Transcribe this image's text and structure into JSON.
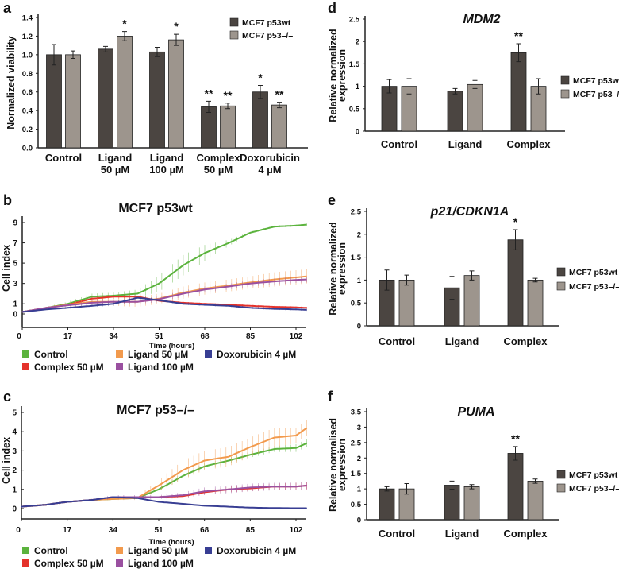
{
  "colors": {
    "wt": "#4b4541",
    "ko": "#9d958d",
    "Control": "#5bb33d",
    "Complex 50 µM": "#e4322b",
    "Ligand 50 µM": "#f29a4d",
    "Ligand 100 µM": "#9a50a0",
    "Doxorubicin 4 µM": "#383e93"
  },
  "chart_data": [
    {
      "id": "a",
      "panel_label": "a",
      "type": "bar",
      "title": "",
      "ylabel": "Normalized viability",
      "ylim": [
        0,
        1.4
      ],
      "yticks": [
        "0.0",
        "0.2",
        "0.4",
        "0.6",
        "0.8",
        "1.0",
        "1.2",
        "1.4"
      ],
      "categories": [
        [
          "Control"
        ],
        [
          "Ligand",
          "50 µM"
        ],
        [
          "Ligand",
          "100 µM"
        ],
        [
          "Complex",
          "50 µM"
        ],
        [
          "Doxorubicin",
          "4 µM"
        ]
      ],
      "series": [
        {
          "name": "MCF7 p53wt",
          "key": "wt",
          "values": [
            1.0,
            1.06,
            1.03,
            0.44,
            0.6
          ],
          "errors": [
            0.11,
            0.03,
            0.05,
            0.06,
            0.07
          ],
          "significance": [
            "",
            "",
            "",
            "**",
            "*"
          ]
        },
        {
          "name": "MCF7 p53–/–",
          "key": "ko",
          "values": [
            1.0,
            1.2,
            1.16,
            0.45,
            0.46
          ],
          "errors": [
            0.04,
            0.05,
            0.06,
            0.03,
            0.03
          ],
          "significance": [
            "",
            "*",
            "*",
            "**",
            "**"
          ]
        }
      ],
      "legend": "top-right"
    },
    {
      "id": "b",
      "panel_label": "b",
      "type": "line",
      "title": "MCF7 p53wt",
      "xlabel": "Time (hours)",
      "ylabel": "Cell index",
      "xlim": [
        0,
        106
      ],
      "ylim": [
        -1,
        9.5
      ],
      "xticks": [
        0,
        17,
        34,
        51,
        68,
        85,
        102
      ],
      "yticks": [
        0,
        1,
        3,
        5,
        7,
        9
      ],
      "series": [
        {
          "name": "Control",
          "x": [
            0,
            9,
            17,
            26,
            34,
            43,
            51,
            60,
            68,
            77,
            85,
            94,
            102,
            106
          ],
          "y": [
            0.2,
            0.6,
            1.0,
            1.7,
            1.8,
            2.0,
            3.0,
            4.8,
            6.0,
            7.0,
            8.0,
            8.6,
            8.7,
            8.8
          ],
          "errors": [
            0.05,
            0.1,
            0.2,
            0.3,
            0.3,
            0.4,
            0.8,
            1.0,
            0.8,
            0.3,
            0.1,
            0.1,
            0.1,
            0.1
          ]
        },
        {
          "name": "Complex 50 µM",
          "x": [
            0,
            9,
            17,
            26,
            34,
            43,
            51,
            60,
            68,
            77,
            85,
            94,
            102,
            106
          ],
          "y": [
            0.2,
            0.6,
            0.9,
            1.5,
            1.7,
            1.7,
            1.3,
            1.1,
            1.0,
            0.9,
            0.8,
            0.7,
            0.65,
            0.6
          ],
          "errors": [
            0.05,
            0.1,
            0.1,
            0.2,
            0.2,
            0.2,
            0.1,
            0.1,
            0.1,
            0.1,
            0.1,
            0.1,
            0.1,
            0.1
          ]
        },
        {
          "name": "Ligand 50 µM",
          "x": [
            0,
            9,
            17,
            26,
            34,
            43,
            51,
            60,
            68,
            77,
            85,
            94,
            102,
            106
          ],
          "y": [
            0.2,
            0.6,
            0.9,
            1.2,
            1.2,
            1.2,
            1.5,
            2.1,
            2.5,
            2.8,
            3.1,
            3.4,
            3.6,
            3.7
          ],
          "errors": [
            0.05,
            0.1,
            0.2,
            0.3,
            0.4,
            0.5,
            0.5,
            0.6,
            0.6,
            0.6,
            0.6,
            0.7,
            0.7,
            0.7
          ]
        },
        {
          "name": "Ligand 100 µM",
          "x": [
            0,
            9,
            17,
            26,
            34,
            43,
            51,
            60,
            68,
            77,
            85,
            94,
            102,
            106
          ],
          "y": [
            0.2,
            0.6,
            0.85,
            1.1,
            1.2,
            1.2,
            1.45,
            2.0,
            2.4,
            2.7,
            3.0,
            3.2,
            3.35,
            3.4
          ],
          "errors": [
            0.05,
            0.1,
            0.1,
            0.2,
            0.2,
            0.2,
            0.3,
            0.3,
            0.3,
            0.3,
            0.3,
            0.3,
            0.3,
            0.3
          ]
        },
        {
          "name": "Doxorubicin 4 µM",
          "x": [
            0,
            9,
            17,
            26,
            34,
            43,
            51,
            60,
            68,
            77,
            85,
            94,
            102,
            106
          ],
          "y": [
            0.2,
            0.45,
            0.6,
            0.8,
            1.0,
            1.6,
            1.35,
            1.0,
            0.9,
            0.8,
            0.6,
            0.5,
            0.45,
            0.4
          ],
          "errors": [
            0.05,
            0.05,
            0.1,
            0.1,
            0.2,
            0.2,
            0.1,
            0.1,
            0.1,
            0.1,
            0.1,
            0.1,
            0.1,
            0.1
          ]
        }
      ],
      "legend": "bottom"
    },
    {
      "id": "c",
      "panel_label": "c",
      "type": "line",
      "title": "MCF7 p53–/–",
      "xlabel": "Time (hours)",
      "ylabel": "Cell index",
      "xlim": [
        0,
        106
      ],
      "ylim": [
        -0.5,
        5.2
      ],
      "xticks": [
        0,
        17,
        34,
        51,
        68,
        85,
        102
      ],
      "yticks": [
        0,
        1,
        2,
        3,
        4,
        5
      ],
      "series": [
        {
          "name": "Control",
          "x": [
            0,
            9,
            17,
            26,
            34,
            43,
            51,
            60,
            68,
            77,
            85,
            94,
            102,
            106
          ],
          "y": [
            0.1,
            0.2,
            0.35,
            0.45,
            0.5,
            0.55,
            1.0,
            1.7,
            2.2,
            2.5,
            2.8,
            3.1,
            3.15,
            3.4
          ],
          "errors": [
            0.05,
            0.05,
            0.05,
            0.05,
            0.05,
            0.05,
            0.1,
            0.15,
            0.15,
            0.15,
            0.15,
            0.15,
            0.2,
            0.2
          ]
        },
        {
          "name": "Complex 50 µM",
          "x": [
            0,
            9,
            17,
            26,
            34,
            43,
            51,
            60,
            68,
            77,
            85,
            94,
            102,
            106
          ],
          "y": [
            0.1,
            0.2,
            0.35,
            0.45,
            0.55,
            0.6,
            0.6,
            0.65,
            0.85,
            1.0,
            1.05,
            1.15,
            1.15,
            1.2
          ],
          "errors": [
            0.05,
            0.05,
            0.05,
            0.05,
            0.05,
            0.05,
            0.05,
            0.1,
            0.1,
            0.15,
            0.15,
            0.15,
            0.2,
            0.2
          ]
        },
        {
          "name": "Ligand 50 µM",
          "x": [
            0,
            9,
            17,
            26,
            34,
            43,
            51,
            60,
            68,
            77,
            85,
            94,
            102,
            106
          ],
          "y": [
            0.1,
            0.2,
            0.35,
            0.45,
            0.5,
            0.55,
            1.2,
            2.0,
            2.5,
            2.7,
            3.2,
            3.7,
            3.8,
            4.2
          ],
          "errors": [
            0.05,
            0.05,
            0.05,
            0.05,
            0.05,
            0.1,
            0.3,
            0.5,
            0.5,
            0.5,
            0.5,
            0.5,
            0.4,
            0.4
          ]
        },
        {
          "name": "Ligand 100 µM",
          "x": [
            0,
            9,
            17,
            26,
            34,
            43,
            51,
            60,
            68,
            77,
            85,
            94,
            102,
            106
          ],
          "y": [
            0.1,
            0.2,
            0.35,
            0.45,
            0.6,
            0.6,
            0.6,
            0.7,
            0.9,
            1.0,
            1.1,
            1.15,
            1.15,
            1.2
          ],
          "errors": [
            0.05,
            0.05,
            0.05,
            0.05,
            0.1,
            0.1,
            0.1,
            0.15,
            0.2,
            0.2,
            0.2,
            0.2,
            0.2,
            0.2
          ]
        },
        {
          "name": "Doxorubicin 4 µM",
          "x": [
            0,
            9,
            17,
            26,
            34,
            43,
            51,
            60,
            68,
            77,
            85,
            94,
            102,
            106
          ],
          "y": [
            0.1,
            0.2,
            0.35,
            0.45,
            0.6,
            0.55,
            0.35,
            0.25,
            0.15,
            0.1,
            0.05,
            0.03,
            0.02,
            0.02
          ],
          "errors": [
            0.02,
            0.02,
            0.02,
            0.02,
            0.05,
            0.05,
            0.03,
            0.03,
            0.03,
            0.02,
            0.02,
            0.02,
            0.02,
            0.02
          ]
        }
      ],
      "legend": "bottom"
    },
    {
      "id": "d",
      "panel_label": "d",
      "type": "bar",
      "title": "MDM2",
      "ylabel": [
        "Relative normalized",
        "expression"
      ],
      "ylim": [
        0,
        2.5
      ],
      "yticks": [
        "0",
        "0.5",
        "1",
        "1.5",
        "2",
        "2.5"
      ],
      "categories": [
        [
          "Control"
        ],
        [
          "Ligand"
        ],
        [
          "Complex"
        ]
      ],
      "series": [
        {
          "name": "MCF7 p53wt",
          "key": "wt",
          "values": [
            1.0,
            0.89,
            1.75
          ],
          "errors": [
            0.15,
            0.06,
            0.2
          ],
          "significance": [
            "",
            "",
            "**"
          ]
        },
        {
          "name": "MCF7 p53–/–",
          "key": "ko",
          "values": [
            1.0,
            1.04,
            1.0
          ],
          "errors": [
            0.17,
            0.09,
            0.17
          ],
          "significance": [
            "",
            "",
            ""
          ]
        }
      ],
      "legend": "right"
    },
    {
      "id": "e",
      "panel_label": "e",
      "type": "bar",
      "title": "p21/CDKN1A",
      "ylabel": [
        "Relative normalized",
        "expression"
      ],
      "ylim": [
        0,
        2.5
      ],
      "yticks": [
        "0",
        "0.5",
        "1",
        "1.5",
        "2",
        "2.5"
      ],
      "categories": [
        [
          "Control"
        ],
        [
          "Ligand"
        ],
        [
          "Complex"
        ]
      ],
      "series": [
        {
          "name": "MCF7 p53wt",
          "key": "wt",
          "values": [
            1.0,
            0.83,
            1.88
          ],
          "errors": [
            0.22,
            0.25,
            0.22
          ],
          "significance": [
            "",
            "",
            "*"
          ]
        },
        {
          "name": "MCF7 p53–/–",
          "key": "ko",
          "values": [
            1.0,
            1.1,
            1.0
          ],
          "errors": [
            0.11,
            0.1,
            0.04
          ],
          "significance": [
            "",
            "",
            ""
          ]
        }
      ],
      "legend": "right"
    },
    {
      "id": "f",
      "panel_label": "f",
      "type": "bar",
      "title": "PUMA",
      "ylabel": [
        "Relative normalised",
        "expression"
      ],
      "ylim": [
        0,
        3.5
      ],
      "yticks": [
        "0",
        "0.5",
        "1",
        "1.5",
        "2",
        "2.5",
        "3",
        "3.5"
      ],
      "categories": [
        [
          "Control"
        ],
        [
          "Ligand"
        ],
        [
          "Complex"
        ]
      ],
      "series": [
        {
          "name": "MCF7 p53wt",
          "key": "wt",
          "values": [
            1.0,
            1.12,
            2.15
          ],
          "errors": [
            0.07,
            0.13,
            0.22
          ],
          "significance": [
            "",
            "",
            "**"
          ]
        },
        {
          "name": "MCF7 p53–/–",
          "key": "ko",
          "values": [
            1.0,
            1.07,
            1.25
          ],
          "errors": [
            0.17,
            0.07,
            0.07
          ],
          "significance": [
            "",
            "",
            ""
          ]
        }
      ],
      "legend": "right"
    }
  ]
}
